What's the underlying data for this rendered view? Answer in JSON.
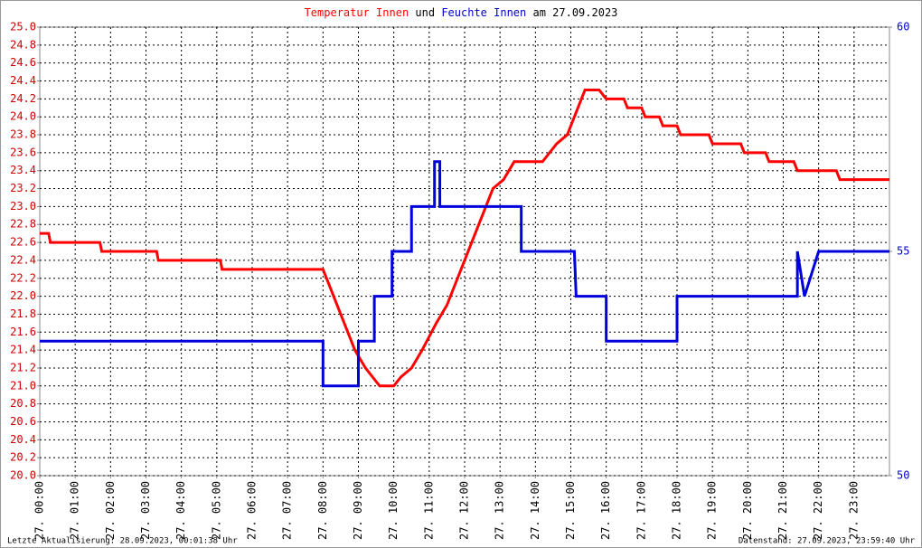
{
  "chart_data": {
    "type": "line",
    "title_parts": [
      {
        "text": "Temperatur Innen",
        "color": "#ff0000"
      },
      {
        "text": "und",
        "color": "#000000"
      },
      {
        "text": "Feuchte Innen",
        "color": "#0000cc"
      },
      {
        "text": "am 27.09.2023",
        "color": "#000000"
      }
    ],
    "footer_left": "Letzte Aktualisierung: 28.09.2023, 00:01:38 Uhr",
    "footer_right": "Datenstand: 27.09.2023, 23:59:40 Uhr",
    "xlim": [
      0,
      24
    ],
    "xticks": [
      {
        "value": 0,
        "label": "27. 00:00"
      },
      {
        "value": 1,
        "label": "27. 01:00"
      },
      {
        "value": 2,
        "label": "27. 02:00"
      },
      {
        "value": 3,
        "label": "27. 03:00"
      },
      {
        "value": 4,
        "label": "27. 04:00"
      },
      {
        "value": 5,
        "label": "27. 05:00"
      },
      {
        "value": 6,
        "label": "27. 06:00"
      },
      {
        "value": 7,
        "label": "27. 07:00"
      },
      {
        "value": 8,
        "label": "27. 08:00"
      },
      {
        "value": 9,
        "label": "27. 09:00"
      },
      {
        "value": 10,
        "label": "27. 10:00"
      },
      {
        "value": 11,
        "label": "27. 11:00"
      },
      {
        "value": 12,
        "label": "27. 12:00"
      },
      {
        "value": 13,
        "label": "27. 13:00"
      },
      {
        "value": 14,
        "label": "27. 14:00"
      },
      {
        "value": 15,
        "label": "27. 15:00"
      },
      {
        "value": 16,
        "label": "27. 16:00"
      },
      {
        "value": 17,
        "label": "27. 17:00"
      },
      {
        "value": 18,
        "label": "27. 18:00"
      },
      {
        "value": 19,
        "label": "27. 19:00"
      },
      {
        "value": 20,
        "label": "27. 20:00"
      },
      {
        "value": 21,
        "label": "27. 21:00"
      },
      {
        "value": 22,
        "label": "27. 22:00"
      },
      {
        "value": 23,
        "label": "27. 23:00"
      }
    ],
    "ylim": [
      20,
      25
    ],
    "yticks": [
      {
        "value": 20,
        "label": "20.0"
      },
      20.2,
      20.4,
      20.6,
      20.8,
      {
        "value": 21,
        "label": "21.0"
      },
      21.2,
      21.4,
      21.6,
      21.8,
      {
        "value": 22,
        "label": "22.0"
      },
      22.2,
      22.4,
      22.6,
      22.8,
      {
        "value": 23,
        "label": "23.0"
      },
      23.2,
      23.4,
      23.6,
      23.8,
      {
        "value": 24,
        "label": "24.0"
      },
      24.2,
      24.4,
      24.6,
      24.8,
      {
        "value": 25,
        "label": "25.0"
      }
    ],
    "y2lim": [
      50,
      60
    ],
    "y2ticks": [
      50,
      55,
      60
    ],
    "grid": true,
    "series": [
      {
        "name": "Temperatur Innen",
        "color": "#ff0000",
        "x": [
          0,
          0.25,
          0.3,
          1.7,
          1.75,
          3.3,
          3.35,
          5.1,
          5.15,
          8.0,
          8.1,
          8.3,
          8.6,
          8.9,
          9.2,
          9.4,
          9.6,
          10.0,
          10.2,
          10.5,
          10.8,
          11.2,
          11.5,
          11.8,
          12.2,
          12.6,
          12.8,
          13.1,
          13.4,
          14.2,
          14.4,
          14.6,
          14.9,
          15.2,
          15.4,
          15.8,
          16.0,
          16.5,
          16.6,
          17.0,
          17.1,
          17.5,
          17.6,
          18.0,
          18.1,
          18.9,
          19.0,
          19.8,
          19.9,
          20.5,
          20.6,
          21.3,
          21.4,
          22.5,
          22.6,
          24
        ],
        "values": [
          22.7,
          22.7,
          22.6,
          22.6,
          22.5,
          22.5,
          22.4,
          22.4,
          22.3,
          22.3,
          22.2,
          22.0,
          21.7,
          21.4,
          21.2,
          21.1,
          21.0,
          21.0,
          21.1,
          21.2,
          21.4,
          21.7,
          21.9,
          22.2,
          22.6,
          23.0,
          23.2,
          23.3,
          23.5,
          23.5,
          23.6,
          23.7,
          23.8,
          24.1,
          24.3,
          24.3,
          24.2,
          24.2,
          24.1,
          24.1,
          24.0,
          24.0,
          23.9,
          23.9,
          23.8,
          23.8,
          23.7,
          23.7,
          23.6,
          23.6,
          23.5,
          23.5,
          23.4,
          23.4,
          23.3,
          23.3
        ]
      },
      {
        "name": "Feuchte Innen",
        "color": "#0000dd",
        "axis": "y2",
        "x": [
          0,
          8.0,
          8.0,
          9.0,
          9.0,
          9.45,
          9.45,
          9.95,
          9.95,
          10.5,
          10.5,
          11.15,
          11.15,
          11.3,
          11.3,
          13.6,
          13.6,
          15.1,
          15.15,
          16.0,
          16.0,
          18.0,
          18.0,
          21.4,
          21.4,
          21.6,
          22.0,
          24
        ],
        "values": [
          53,
          53,
          52,
          52,
          53,
          53,
          54,
          54,
          55,
          55,
          56,
          56,
          57,
          57,
          56,
          56,
          55,
          55,
          54,
          54,
          53,
          53,
          54,
          54,
          55,
          54,
          55,
          55
        ]
      }
    ]
  }
}
